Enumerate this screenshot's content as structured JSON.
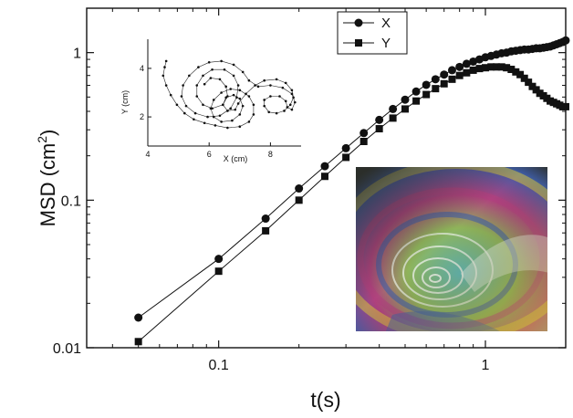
{
  "chart_data": [
    {
      "type": "line",
      "scale": {
        "x": "log",
        "y": "log"
      },
      "xlabel": "t(s)",
      "ylabel_main": "MSD (cm",
      "ylabel_sup": "2",
      "ylabel_close": ")",
      "xlim": [
        0.032,
        2.0
      ],
      "ylim": [
        0.01,
        2.0
      ],
      "x_ticks": [
        0.1,
        1
      ],
      "x_tick_labels": [
        "0.1",
        "1"
      ],
      "y_ticks": [
        0.01,
        0.1,
        1
      ],
      "y_tick_labels": [
        "0.01",
        "0.1",
        "1"
      ],
      "legend_position": "top-center",
      "series": [
        {
          "name": "X",
          "marker": "circle",
          "x": [
            0.05,
            0.1,
            0.15,
            0.2,
            0.25,
            0.3,
            0.35,
            0.4,
            0.45,
            0.5,
            0.55,
            0.6,
            0.65,
            0.7,
            0.75,
            0.8,
            0.85,
            0.9,
            0.95,
            1.0,
            1.05,
            1.1,
            1.15,
            1.2,
            1.25,
            1.3,
            1.35,
            1.4,
            1.45,
            1.5,
            1.55,
            1.6,
            1.65,
            1.7,
            1.75,
            1.8,
            1.85,
            1.9,
            1.95,
            2.0
          ],
          "y": [
            0.016,
            0.04,
            0.075,
            0.12,
            0.17,
            0.225,
            0.285,
            0.35,
            0.415,
            0.48,
            0.545,
            0.605,
            0.66,
            0.71,
            0.76,
            0.8,
            0.84,
            0.87,
            0.9,
            0.93,
            0.95,
            0.97,
            0.99,
            1.0,
            1.02,
            1.03,
            1.04,
            1.05,
            1.05,
            1.06,
            1.07,
            1.07,
            1.08,
            1.09,
            1.1,
            1.12,
            1.14,
            1.16,
            1.18,
            1.21
          ]
        },
        {
          "name": "Y",
          "marker": "square",
          "x": [
            0.05,
            0.1,
            0.15,
            0.2,
            0.25,
            0.3,
            0.35,
            0.4,
            0.45,
            0.5,
            0.55,
            0.6,
            0.65,
            0.7,
            0.75,
            0.8,
            0.85,
            0.9,
            0.95,
            1.0,
            1.05,
            1.1,
            1.15,
            1.2,
            1.25,
            1.3,
            1.35,
            1.4,
            1.45,
            1.5,
            1.55,
            1.6,
            1.65,
            1.7,
            1.75,
            1.8,
            1.85,
            1.9,
            1.95,
            2.0
          ],
          "y": [
            0.011,
            0.033,
            0.062,
            0.1,
            0.145,
            0.195,
            0.25,
            0.305,
            0.36,
            0.415,
            0.47,
            0.52,
            0.57,
            0.615,
            0.66,
            0.7,
            0.73,
            0.76,
            0.78,
            0.79,
            0.8,
            0.8,
            0.8,
            0.79,
            0.77,
            0.74,
            0.71,
            0.67,
            0.63,
            0.59,
            0.56,
            0.53,
            0.51,
            0.49,
            0.47,
            0.46,
            0.45,
            0.44,
            0.43,
            0.43
          ]
        }
      ]
    },
    {
      "type": "scatter",
      "inset": true,
      "xlabel": "X (cm)",
      "ylabel": "Y (cm)",
      "xlim": [
        4,
        9
      ],
      "ylim": [
        0.8,
        5.2
      ],
      "x_ticks": [
        4,
        6,
        8
      ],
      "y_ticks": [
        2,
        4
      ],
      "trajectory": [
        [
          4.6,
          4.3
        ],
        [
          4.55,
          4.05
        ],
        [
          4.5,
          3.7
        ],
        [
          4.6,
          3.3
        ],
        [
          4.75,
          2.9
        ],
        [
          4.95,
          2.5
        ],
        [
          5.2,
          2.15
        ],
        [
          5.5,
          1.9
        ],
        [
          5.85,
          1.75
        ],
        [
          6.2,
          1.65
        ],
        [
          6.6,
          1.55
        ],
        [
          7.0,
          1.6
        ],
        [
          7.3,
          1.8
        ],
        [
          7.45,
          2.1
        ],
        [
          7.45,
          2.5
        ],
        [
          7.3,
          2.85
        ],
        [
          7.0,
          3.1
        ],
        [
          6.7,
          3.15
        ],
        [
          6.4,
          3.0
        ],
        [
          6.15,
          2.7
        ],
        [
          6.05,
          2.35
        ],
        [
          6.15,
          2.0
        ],
        [
          6.4,
          1.8
        ],
        [
          6.75,
          1.85
        ],
        [
          7.0,
          2.1
        ],
        [
          7.1,
          2.45
        ],
        [
          7.0,
          2.75
        ],
        [
          6.8,
          2.9
        ],
        [
          6.55,
          2.8
        ],
        [
          6.45,
          2.5
        ],
        [
          6.6,
          2.25
        ],
        [
          6.85,
          2.3
        ],
        [
          6.95,
          2.55
        ],
        [
          7.2,
          2.95
        ],
        [
          7.5,
          3.3
        ],
        [
          7.8,
          3.5
        ],
        [
          8.2,
          3.55
        ],
        [
          8.5,
          3.4
        ],
        [
          8.7,
          3.1
        ],
        [
          8.75,
          2.8
        ],
        [
          8.65,
          2.5
        ],
        [
          8.45,
          2.25
        ],
        [
          8.2,
          2.15
        ],
        [
          7.95,
          2.2
        ],
        [
          7.8,
          2.45
        ],
        [
          7.8,
          2.7
        ],
        [
          8.0,
          2.85
        ],
        [
          8.3,
          2.85
        ],
        [
          8.5,
          2.65
        ],
        [
          8.55,
          2.4
        ],
        [
          8.7,
          2.3
        ],
        [
          8.8,
          2.6
        ],
        [
          8.7,
          2.95
        ],
        [
          8.4,
          3.2
        ],
        [
          8.0,
          3.3
        ],
        [
          7.6,
          3.25
        ],
        [
          7.3,
          3.5
        ],
        [
          7.1,
          3.85
        ],
        [
          6.8,
          4.15
        ],
        [
          6.4,
          4.3
        ],
        [
          6.0,
          4.25
        ],
        [
          5.65,
          4.05
        ],
        [
          5.35,
          3.7
        ],
        [
          5.15,
          3.3
        ],
        [
          5.1,
          2.85
        ],
        [
          5.25,
          2.45
        ],
        [
          5.55,
          2.15
        ],
        [
          5.95,
          2.0
        ],
        [
          6.35,
          2.05
        ],
        [
          6.7,
          2.35
        ],
        [
          6.9,
          2.8
        ],
        [
          6.95,
          3.3
        ],
        [
          6.8,
          3.7
        ],
        [
          6.5,
          3.95
        ],
        [
          6.1,
          3.95
        ],
        [
          5.8,
          3.7
        ],
        [
          5.6,
          3.3
        ],
        [
          5.6,
          2.85
        ],
        [
          5.8,
          2.5
        ],
        [
          6.1,
          2.35
        ],
        [
          6.45,
          2.5
        ],
        [
          6.6,
          2.85
        ],
        [
          6.55,
          3.25
        ],
        [
          6.35,
          3.55
        ],
        [
          6.05,
          3.6
        ],
        [
          5.85,
          3.35
        ]
      ]
    }
  ],
  "legend": {
    "x_label": "X",
    "y_label": "Y"
  },
  "photo": {
    "colors": {
      "frame": "#3b3a2c",
      "dark": "#2b2e2a",
      "yellow": "#d9c43a",
      "magenta": "#b0417e",
      "cyan": "#5fb8b7",
      "blue": "#3f5ea8",
      "green": "#8fb45a",
      "white": "#e9efe6"
    }
  }
}
